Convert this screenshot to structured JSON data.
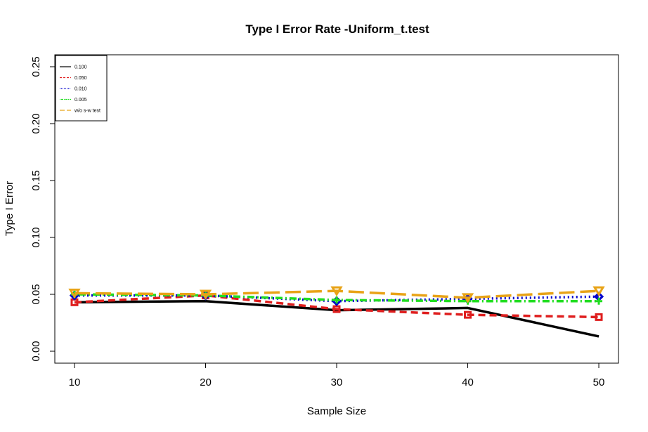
{
  "chart_data": {
    "type": "line",
    "title": "Type I Error Rate -Uniform_t.test",
    "xlabel": "Sample Size",
    "ylabel": "Type I Error",
    "x": [
      10,
      20,
      30,
      40,
      50
    ],
    "x_ticks": [
      "10",
      "20",
      "30",
      "40",
      "50"
    ],
    "y_ticks": [
      "0.00",
      "0.05",
      "0.10",
      "0.15",
      "0.20",
      "0.25"
    ],
    "xlim": [
      8.5,
      51.5
    ],
    "ylim": [
      -0.0105,
      0.2605
    ],
    "grid": false,
    "legend_position": "top-left",
    "series": [
      {
        "name": "0.100",
        "values": [
          0.043,
          0.044,
          0.036,
          0.038,
          0.013
        ],
        "color": "#000000",
        "dash": "",
        "marker": "none"
      },
      {
        "name": "0.050",
        "values": [
          0.043,
          0.049,
          0.037,
          0.032,
          0.03
        ],
        "color": "#DF1E1E",
        "dash": "10,6",
        "marker": "square"
      },
      {
        "name": "0.010",
        "values": [
          0.049,
          0.049,
          0.044,
          0.046,
          0.048
        ],
        "color": "#0000CD",
        "dash": "2,4",
        "marker": "diamond"
      },
      {
        "name": "0.005",
        "values": [
          0.05,
          0.049,
          0.045,
          0.044,
          0.044
        ],
        "color": "#22DD22",
        "dash": "2,4,10,4",
        "marker": "plus"
      },
      {
        "name": "w/o s-w test",
        "values": [
          0.051,
          0.05,
          0.053,
          0.047,
          0.053
        ],
        "color": "#E8A317",
        "dash": "22,8",
        "marker": "triangle-down"
      }
    ]
  }
}
